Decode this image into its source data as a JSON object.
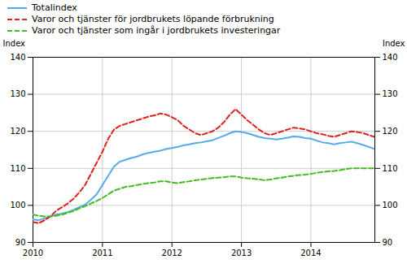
{
  "chart_data": {
    "type": "line",
    "ylabel": "Index",
    "y2label": "Index",
    "x": [
      2010,
      2010.0833333333,
      2010.1666666667,
      2010.25,
      2010.3333333333,
      2010.4166666667,
      2010.5,
      2010.5833333333,
      2010.6666666667,
      2010.75,
      2010.8333333333,
      2010.9166666667,
      2011,
      2011.0833333333,
      2011.1666666667,
      2011.25,
      2011.3333333333,
      2011.4166666667,
      2011.5,
      2011.5833333333,
      2011.6666666667,
      2011.75,
      2011.8333333333,
      2011.9166666667,
      2012,
      2012.0833333333,
      2012.1666666667,
      2012.25,
      2012.3333333333,
      2012.4166666667,
      2012.5,
      2012.5833333333,
      2012.6666666667,
      2012.75,
      2012.8333333333,
      2012.9166666667,
      2013,
      2013.0833333333,
      2013.1666666667,
      2013.25,
      2013.3333333333,
      2013.4166666667,
      2013.5,
      2013.5833333333,
      2013.6666666667,
      2013.75,
      2013.8333333333,
      2013.9166666667,
      2014,
      2014.0833333333,
      2014.1666666667,
      2014.25,
      2014.3333333333,
      2014.4166666667,
      2014.5,
      2014.5833333333,
      2014.6666666667,
      2014.75,
      2014.8333333333,
      2014.9166666667
    ],
    "series": [
      {
        "name": "Totalindex",
        "color": "#55aaee",
        "line_style": "solid",
        "values": [
          96.2,
          96.0,
          96.5,
          97.0,
          97.5,
          97.8,
          98.2,
          98.8,
          99.5,
          100.2,
          101.5,
          103.0,
          105.5,
          108.0,
          110.5,
          111.8,
          112.3,
          112.8,
          113.2,
          113.8,
          114.2,
          114.5,
          114.8,
          115.2,
          115.5,
          115.8,
          116.2,
          116.5,
          116.8,
          117.0,
          117.3,
          117.6,
          118.2,
          118.8,
          119.5,
          120.0,
          119.8,
          119.5,
          119.0,
          118.5,
          118.2,
          118.0,
          117.8,
          118.0,
          118.3,
          118.6,
          118.5,
          118.2,
          118.0,
          117.5,
          117.0,
          116.8,
          116.5,
          116.8,
          117.0,
          117.2,
          116.8,
          116.3,
          115.8,
          115.2
        ]
      },
      {
        "name": "Varor och tjänster för jordbrukets löpande förbrukning",
        "color": "#dd2222",
        "line_style": "dashed",
        "values": [
          95.5,
          95.2,
          96.0,
          97.0,
          98.5,
          99.5,
          100.5,
          101.8,
          103.5,
          105.5,
          108.5,
          111.5,
          114.5,
          118.0,
          120.5,
          121.5,
          122.0,
          122.5,
          123.0,
          123.5,
          124.0,
          124.3,
          124.8,
          124.5,
          123.8,
          123.0,
          121.5,
          120.5,
          119.5,
          119.0,
          119.5,
          120.0,
          121.0,
          122.5,
          124.5,
          126.0,
          124.5,
          123.0,
          121.8,
          120.5,
          119.5,
          119.0,
          119.5,
          120.0,
          120.5,
          121.0,
          120.8,
          120.5,
          120.0,
          119.5,
          119.2,
          118.8,
          118.5,
          119.0,
          119.5,
          120.0,
          119.8,
          119.5,
          119.0,
          118.5
        ]
      },
      {
        "name": "Varor och tjänster som ingår i jordbrukets investeringar",
        "color": "#44bb22",
        "line_style": "dashed",
        "values": [
          97.5,
          97.2,
          97.0,
          97.0,
          97.2,
          97.5,
          98.0,
          98.5,
          99.2,
          99.8,
          100.5,
          101.2,
          102.0,
          103.0,
          104.0,
          104.5,
          105.0,
          105.2,
          105.5,
          105.8,
          106.0,
          106.2,
          106.5,
          106.5,
          106.2,
          106.0,
          106.3,
          106.5,
          106.8,
          107.0,
          107.2,
          107.4,
          107.5,
          107.6,
          107.8,
          107.8,
          107.5,
          107.3,
          107.2,
          107.0,
          106.8,
          107.0,
          107.3,
          107.5,
          107.8,
          108.0,
          108.2,
          108.3,
          108.5,
          108.8,
          109.0,
          109.2,
          109.3,
          109.5,
          109.8,
          110.0,
          110.0,
          110.0,
          110.0,
          110.0
        ]
      }
    ],
    "xlim": [
      2010.0,
      2014.92
    ],
    "xticks": [
      2010,
      2011,
      2012,
      2013,
      2014
    ],
    "ylim": [
      90,
      140
    ],
    "yticks": [
      90,
      100,
      110,
      120,
      130,
      140
    ],
    "y2lim": [
      90,
      140
    ],
    "y2ticks": [
      90,
      100,
      110,
      120,
      130,
      140
    ],
    "grid": true,
    "legend": "upper left"
  }
}
